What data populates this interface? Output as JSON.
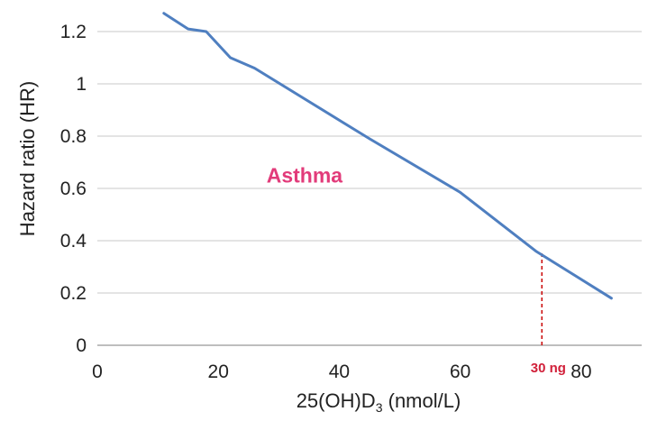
{
  "chart_data": {
    "type": "line",
    "title": "",
    "xlabel": "25(OH)D3 (nmol/L)",
    "xlabel_parts": {
      "pre": "25(OH)D",
      "sub": "3",
      "post": " (nmol/L)"
    },
    "ylabel": "Hazard ratio (HR)",
    "xlim": [
      0,
      90
    ],
    "ylim": [
      0,
      1.3
    ],
    "x_ticks": [
      0,
      20,
      40,
      60,
      80
    ],
    "x_tick_labels": [
      "0",
      "20",
      "40",
      "60",
      "80"
    ],
    "y_ticks": [
      0,
      0.2,
      0.4,
      0.6,
      0.8,
      1,
      1.2
    ],
    "y_tick_labels": [
      "0",
      "0.2",
      "0.4",
      "0.6",
      "0.8",
      "1",
      "1.2"
    ],
    "grid": "horizontal",
    "series": [
      {
        "x": [
          11,
          15,
          18,
          22,
          26,
          45,
          60,
          72.5,
          85
        ],
        "y": [
          1.27,
          1.21,
          1.2,
          1.1,
          1.06,
          0.79,
          0.585,
          0.36,
          0.18
        ],
        "color": "#4f7fc0"
      }
    ],
    "annotations": [
      {
        "text": "Asthma",
        "x": 35,
        "y": 0.65,
        "color": "#e23b7a"
      },
      {
        "text": "30 ng",
        "x": 75,
        "y": 0,
        "color": "#d1203a",
        "marker": "dashed-vertical"
      }
    ],
    "marker_line": {
      "x": 73.5,
      "y_from": 0,
      "y_to": 0.36,
      "color": "#cc1111"
    }
  }
}
